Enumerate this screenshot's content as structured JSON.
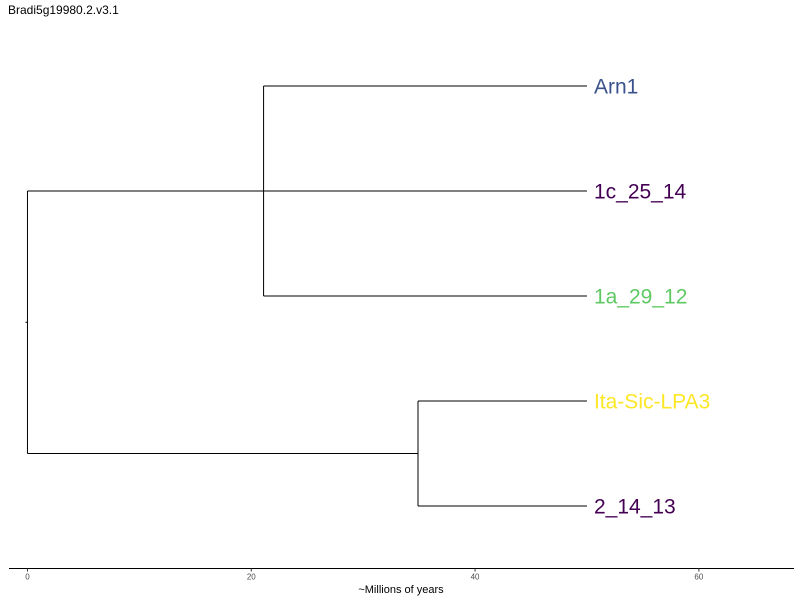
{
  "chart_data": {
    "type": "tree",
    "title": "Bradi5g19980.2.v3.1",
    "xlabel": "~Millions of years",
    "xlim": [
      -1.65,
      68.5
    ],
    "xticks": [
      0,
      20,
      40,
      60
    ],
    "tips": [
      {
        "id": "Arn1",
        "label": "Arn1",
        "color": "#3b528b"
      },
      {
        "id": "1c_25_14",
        "label": "1c_25_14",
        "color": "#440154"
      },
      {
        "id": "1a_29_12",
        "label": "1a_29_12",
        "color": "#5ec962"
      },
      {
        "id": "Ita-Sic-LPA3",
        "label": "Ita-Sic-LPA3",
        "color": "#fde725"
      },
      {
        "id": "2_14_13",
        "label": "2_14_13",
        "color": "#440154"
      }
    ],
    "tip_x": 50,
    "nodes": [
      {
        "id": "root",
        "x": 0,
        "children": [
          "cladeA",
          "cladeB"
        ]
      },
      {
        "id": "cladeA",
        "x": 21.1,
        "children": [
          "Arn1",
          "1c_25_14",
          "1a_29_12"
        ]
      },
      {
        "id": "cladeB",
        "x": 34.9,
        "children": [
          "Ita-Sic-LPA3",
          "2_14_13"
        ]
      }
    ]
  }
}
